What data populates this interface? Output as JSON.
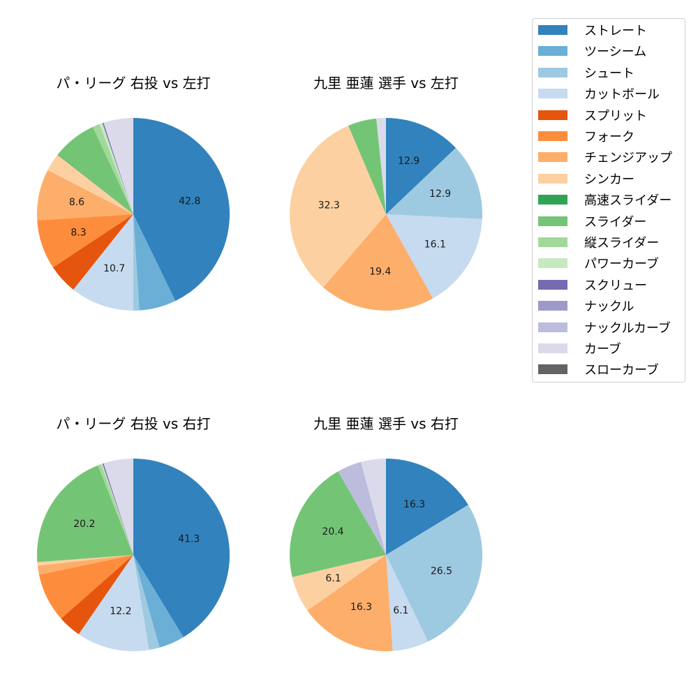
{
  "legend": {
    "items": [
      {
        "label": "ストレート",
        "color": "#3182bd"
      },
      {
        "label": "ツーシーム",
        "color": "#6baed6"
      },
      {
        "label": "シュート",
        "color": "#9ecae1"
      },
      {
        "label": "カットボール",
        "color": "#c6dbef"
      },
      {
        "label": "スプリット",
        "color": "#e6550d"
      },
      {
        "label": "フォーク",
        "color": "#fd8d3c"
      },
      {
        "label": "チェンジアップ",
        "color": "#fdae6b"
      },
      {
        "label": "シンカー",
        "color": "#fdd0a2"
      },
      {
        "label": "高速スライダー",
        "color": "#31a354"
      },
      {
        "label": "スライダー",
        "color": "#74c476"
      },
      {
        "label": "縦スライダー",
        "color": "#a1d99b"
      },
      {
        "label": "パワーカーブ",
        "color": "#c7e9c0"
      },
      {
        "label": "スクリュー",
        "color": "#756bb1"
      },
      {
        "label": "ナックル",
        "color": "#9e9ac8"
      },
      {
        "label": "ナックルカーブ",
        "color": "#bcbddc"
      },
      {
        "label": "カーブ",
        "color": "#dadaeb"
      },
      {
        "label": "スローカーブ",
        "color": "#636363"
      }
    ]
  },
  "chart_data": [
    {
      "type": "pie",
      "title": "パ・リーグ 右投 vs 左打",
      "categories": [
        "ストレート",
        "ツーシーム",
        "シュート",
        "カットボール",
        "スプリット",
        "フォーク",
        "チェンジアップ",
        "シンカー",
        "高速スライダー",
        "スライダー",
        "縦スライダー",
        "パワーカーブ",
        "スクリュー",
        "カーブ"
      ],
      "values": [
        42.8,
        6.2,
        1.0,
        10.7,
        5.0,
        8.3,
        8.6,
        3.0,
        0.1,
        7.4,
        1.2,
        0.5,
        0.2,
        5.0
      ],
      "labels_shown": [
        "42.8",
        "",
        "",
        "10.7",
        "",
        "8.3",
        "8.6",
        "",
        "",
        "",
        "",
        "",
        "",
        ""
      ],
      "start_angle": 90,
      "direction": "clockwise"
    },
    {
      "type": "pie",
      "title": "九里 亜蓮 選手 vs 左打",
      "categories": [
        "ストレート",
        "シュート",
        "カットボール",
        "チェンジアップ",
        "シンカー",
        "スライダー",
        "カーブ"
      ],
      "values": [
        12.9,
        12.9,
        16.1,
        19.4,
        32.3,
        4.8,
        1.6
      ],
      "labels_shown": [
        "12.9",
        "12.9",
        "16.1",
        "19.4",
        "32.3",
        "",
        ""
      ],
      "start_angle": 90,
      "direction": "clockwise"
    },
    {
      "type": "pie",
      "title": "パ・リーグ 右投 vs 右打",
      "categories": [
        "ストレート",
        "ツーシーム",
        "シュート",
        "カットボール",
        "スプリット",
        "フォーク",
        "チェンジアップ",
        "シンカー",
        "スライダー",
        "縦スライダー",
        "パワーカーブ",
        "スクリュー",
        "カーブ"
      ],
      "values": [
        41.3,
        4.3,
        1.8,
        12.2,
        3.9,
        8.2,
        1.5,
        0.6,
        20.2,
        0.6,
        0.2,
        0.2,
        5.0
      ],
      "labels_shown": [
        "41.3",
        "",
        "",
        "12.2",
        "",
        "",
        "",
        "",
        "20.2",
        "",
        "",
        "",
        ""
      ],
      "start_angle": 90,
      "direction": "clockwise"
    },
    {
      "type": "pie",
      "title": "九里 亜蓮 選手 vs 右打",
      "categories": [
        "ストレート",
        "シュート",
        "カットボール",
        "チェンジアップ",
        "シンカー",
        "スライダー",
        "ナックルカーブ",
        "カーブ"
      ],
      "values": [
        16.3,
        26.5,
        6.1,
        16.3,
        6.1,
        20.4,
        4.1,
        4.2
      ],
      "labels_shown": [
        "16.3",
        "26.5",
        "6.1",
        "16.3",
        "6.1",
        "20.4",
        "",
        ""
      ],
      "start_angle": 90,
      "direction": "clockwise"
    }
  ]
}
